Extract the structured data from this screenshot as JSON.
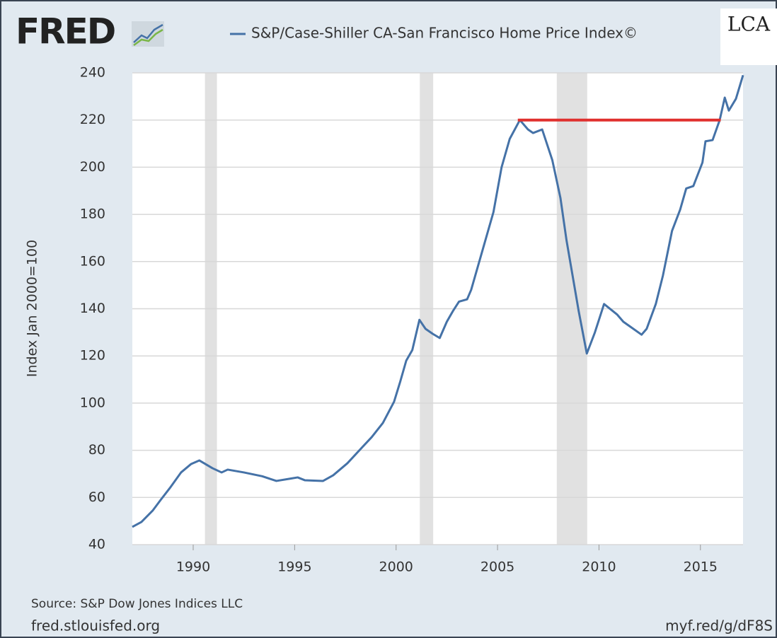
{
  "logo": "FRED",
  "corner_logo": "LCA",
  "chart_data": {
    "type": "line",
    "series": [
      {
        "name": "S&P/Case-Shiller CA-San Francisco Home Price Index©",
        "color": "#4572a7",
        "x": [
          1987.0,
          1987.45,
          1988.0,
          1988.4,
          1988.85,
          1989.4,
          1989.9,
          1990.3,
          1990.95,
          1991.4,
          1991.7,
          1992.5,
          1993.4,
          1994.1,
          1994.8,
          1995.15,
          1995.5,
          1996.4,
          1996.9,
          1997.6,
          1998.3,
          1998.8,
          1999.35,
          1999.9,
          2000.2,
          2000.5,
          2000.8,
          2001.15,
          2001.45,
          2001.8,
          2002.15,
          2002.5,
          2002.8,
          2003.1,
          2003.5,
          2003.7,
          2004.2,
          2004.8,
          2005.2,
          2005.6,
          2006.1,
          2006.5,
          2006.75,
          2007.2,
          2007.7,
          2008.1,
          2008.4,
          2009.0,
          2009.4,
          2009.8,
          2010.25,
          2010.9,
          2011.2,
          2012.1,
          2012.35,
          2012.8,
          2013.15,
          2013.6,
          2014.0,
          2014.3,
          2014.65,
          2015.1,
          2015.25,
          2015.6,
          2015.95,
          2016.2,
          2016.4,
          2016.75,
          2017.1
        ],
        "values": [
          47.5,
          49.6,
          54.4,
          59,
          64,
          70.6,
          74.2,
          75.7,
          72.4,
          70.6,
          71.8,
          70.6,
          69,
          67,
          68,
          68.5,
          67.3,
          67,
          69.4,
          74.5,
          81,
          85.6,
          91.6,
          100.6,
          109,
          118,
          122.5,
          135.3,
          131.5,
          129.4,
          127.6,
          134.5,
          139,
          143,
          144,
          148,
          163,
          181,
          200,
          212,
          220,
          216,
          214.5,
          216,
          203,
          187,
          169,
          139,
          121,
          130,
          142,
          137.5,
          134.5,
          129,
          131.5,
          142,
          154,
          173,
          182,
          191,
          192,
          202,
          211,
          211.5,
          220,
          229.5,
          224,
          229,
          239
        ]
      }
    ],
    "recessions": [
      [
        1990.58,
        1991.17
      ],
      [
        2001.17,
        2001.83
      ],
      [
        2007.92,
        2009.42
      ]
    ],
    "reference_line": {
      "x": [
        2006.0,
        2016.0
      ],
      "y": 220,
      "color": "#e0302e"
    },
    "ylabel": "Index Jan 2000=100",
    "xlim": [
      1987.0,
      2017.1
    ],
    "xticks": [
      1990,
      1995,
      2000,
      2005,
      2010,
      2015
    ],
    "ylim": [
      40,
      240
    ],
    "yticks": [
      40,
      60,
      80,
      100,
      120,
      140,
      160,
      180,
      200,
      220,
      240
    ],
    "grid": true,
    "source": "Source: S&P Dow Jones Indices LLC",
    "footer_left": "fred.stlouisfed.org",
    "footer_right": "myf.red/g/dF8S"
  }
}
